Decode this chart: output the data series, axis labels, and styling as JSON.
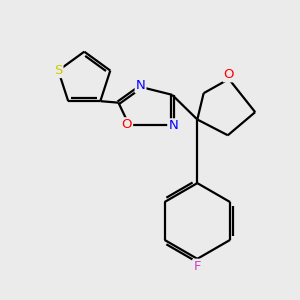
{
  "background_color": "#ebebeb",
  "bond_color": "#000000",
  "S_color": "#cccc00",
  "O_color": "#ff0000",
  "N_color": "#0000ff",
  "F_color": "#cc44cc",
  "line_width": 1.6,
  "dbo": 0.055,
  "figsize": [
    3.0,
    3.0
  ],
  "dpi": 100,
  "xlim": [
    -2.8,
    2.8
  ],
  "ylim": [
    -1.6,
    3.2
  ]
}
